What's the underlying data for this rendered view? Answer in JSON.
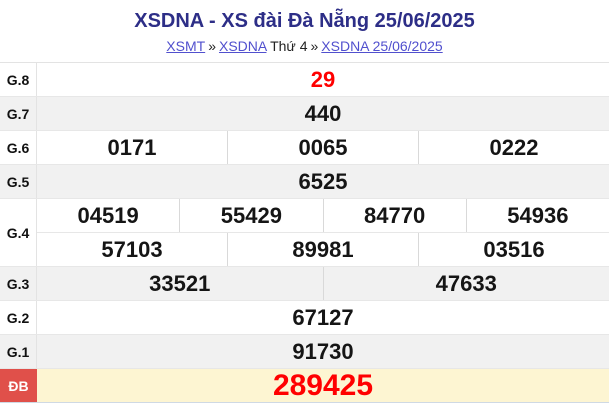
{
  "header": {
    "title": "XSDNA - XS đài Đà Nẵng 25/06/2025",
    "breadcrumb": {
      "link_region": "XSMT",
      "sep1": "»",
      "link_station": "XSDNA",
      "weekday": "Thứ 4",
      "sep2": "»",
      "link_draw": "XSDNA 25/06/2025"
    }
  },
  "table": {
    "rows": [
      {
        "label": "G.8",
        "cells": [
          "29"
        ]
      },
      {
        "label": "G.7",
        "cells": [
          "440"
        ]
      },
      {
        "label": "G.6",
        "cells": [
          "0171",
          "0065",
          "0222"
        ]
      },
      {
        "label": "G.5",
        "cells": [
          "6525"
        ]
      },
      {
        "label": "G.4",
        "cells_line1": [
          "04519",
          "55429",
          "84770",
          "54936"
        ],
        "cells_line2": [
          "57103",
          "89981",
          "03516"
        ]
      },
      {
        "label": "G.3",
        "cells": [
          "33521",
          "47633"
        ]
      },
      {
        "label": "G.2",
        "cells": [
          "67127"
        ]
      },
      {
        "label": "G.1",
        "cells": [
          "91730"
        ]
      },
      {
        "label": "ĐB",
        "cells": [
          "289425"
        ]
      }
    ]
  },
  "colors": {
    "title_navy": "#2d2e87",
    "link_blue": "#5150ce",
    "highlight_red_text": "#ff0000",
    "special_label_bg": "#e0504a",
    "special_row_bg": "#fdf5d2",
    "shade_row_bg": "#f1f1f1",
    "number_black": "#151515"
  }
}
